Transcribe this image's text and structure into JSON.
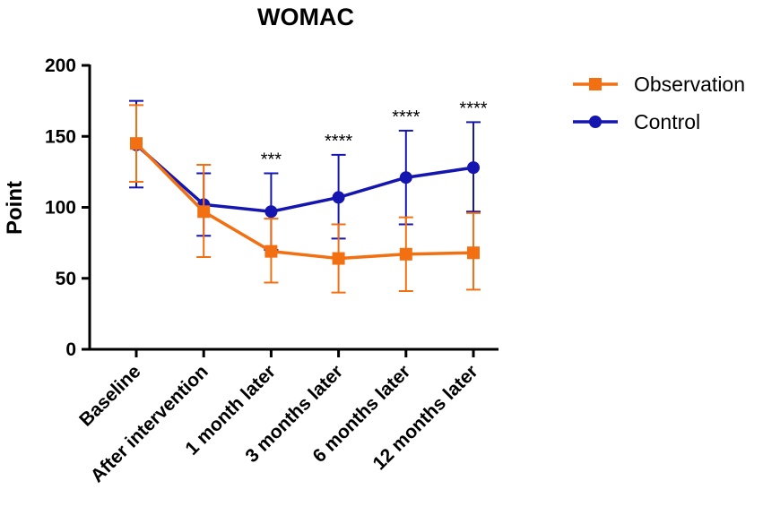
{
  "chart_data": {
    "type": "line",
    "title": "WOMAC",
    "xlabel": "",
    "ylabel": "Point",
    "ylim": [
      0,
      200
    ],
    "yticks": [
      0,
      50,
      100,
      150,
      200
    ],
    "categories": [
      "Baseline",
      "After intervention",
      "1 month later",
      "3 months later",
      "6 months later",
      "12 months later"
    ],
    "series": [
      {
        "name": "Observation",
        "color": "#f26f12",
        "marker": "square",
        "values": [
          145,
          97,
          69,
          64,
          67,
          68
        ],
        "error_low": [
          118,
          65,
          47,
          40,
          41,
          42
        ],
        "error_high": [
          172,
          130,
          92,
          88,
          93,
          96
        ]
      },
      {
        "name": "Control",
        "color": "#1515b0",
        "marker": "circle",
        "values": [
          144,
          102,
          97,
          107,
          121,
          128
        ],
        "error_low": [
          114,
          80,
          70,
          78,
          88,
          97
        ],
        "error_high": [
          175,
          124,
          124,
          137,
          154,
          160
        ]
      }
    ],
    "significance": [
      {
        "category": "1 month later",
        "label": "***"
      },
      {
        "category": "3 months later",
        "label": "****"
      },
      {
        "category": "6 months later",
        "label": "****"
      },
      {
        "category": "12 months later",
        "label": "****"
      }
    ],
    "legend_position": "top-right"
  }
}
